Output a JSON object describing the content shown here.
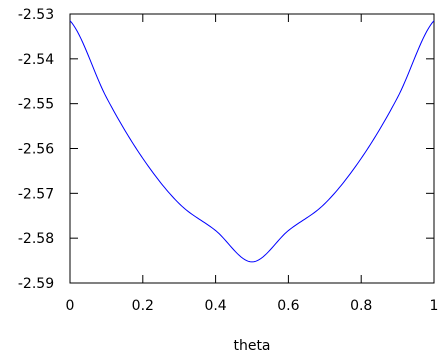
{
  "chart_data": {
    "type": "line",
    "title": "",
    "xlabel": "theta",
    "ylabel": "",
    "xlim": [
      0,
      1
    ],
    "ylim": [
      -2.59,
      -2.53
    ],
    "x_ticks": [
      "0",
      "0.2",
      "0.4",
      "0.6",
      "0.8",
      "1"
    ],
    "y_ticks": [
      "-2.53",
      "-2.54",
      "-2.55",
      "-2.56",
      "-2.57",
      "-2.58",
      "-2.59"
    ],
    "grid": false,
    "legend": "none",
    "series": [
      {
        "color": "#0000ff",
        "x": [
          0.0,
          0.1,
          0.2,
          0.3,
          0.4,
          0.5,
          0.6,
          0.7,
          0.8,
          0.9,
          1.0
        ],
        "y": [
          -2.5315,
          -2.5486,
          -2.5622,
          -2.5723,
          -2.5783,
          -2.5853,
          -2.5783,
          -2.5723,
          -2.5622,
          -2.5486,
          -2.5315
        ]
      }
    ]
  }
}
